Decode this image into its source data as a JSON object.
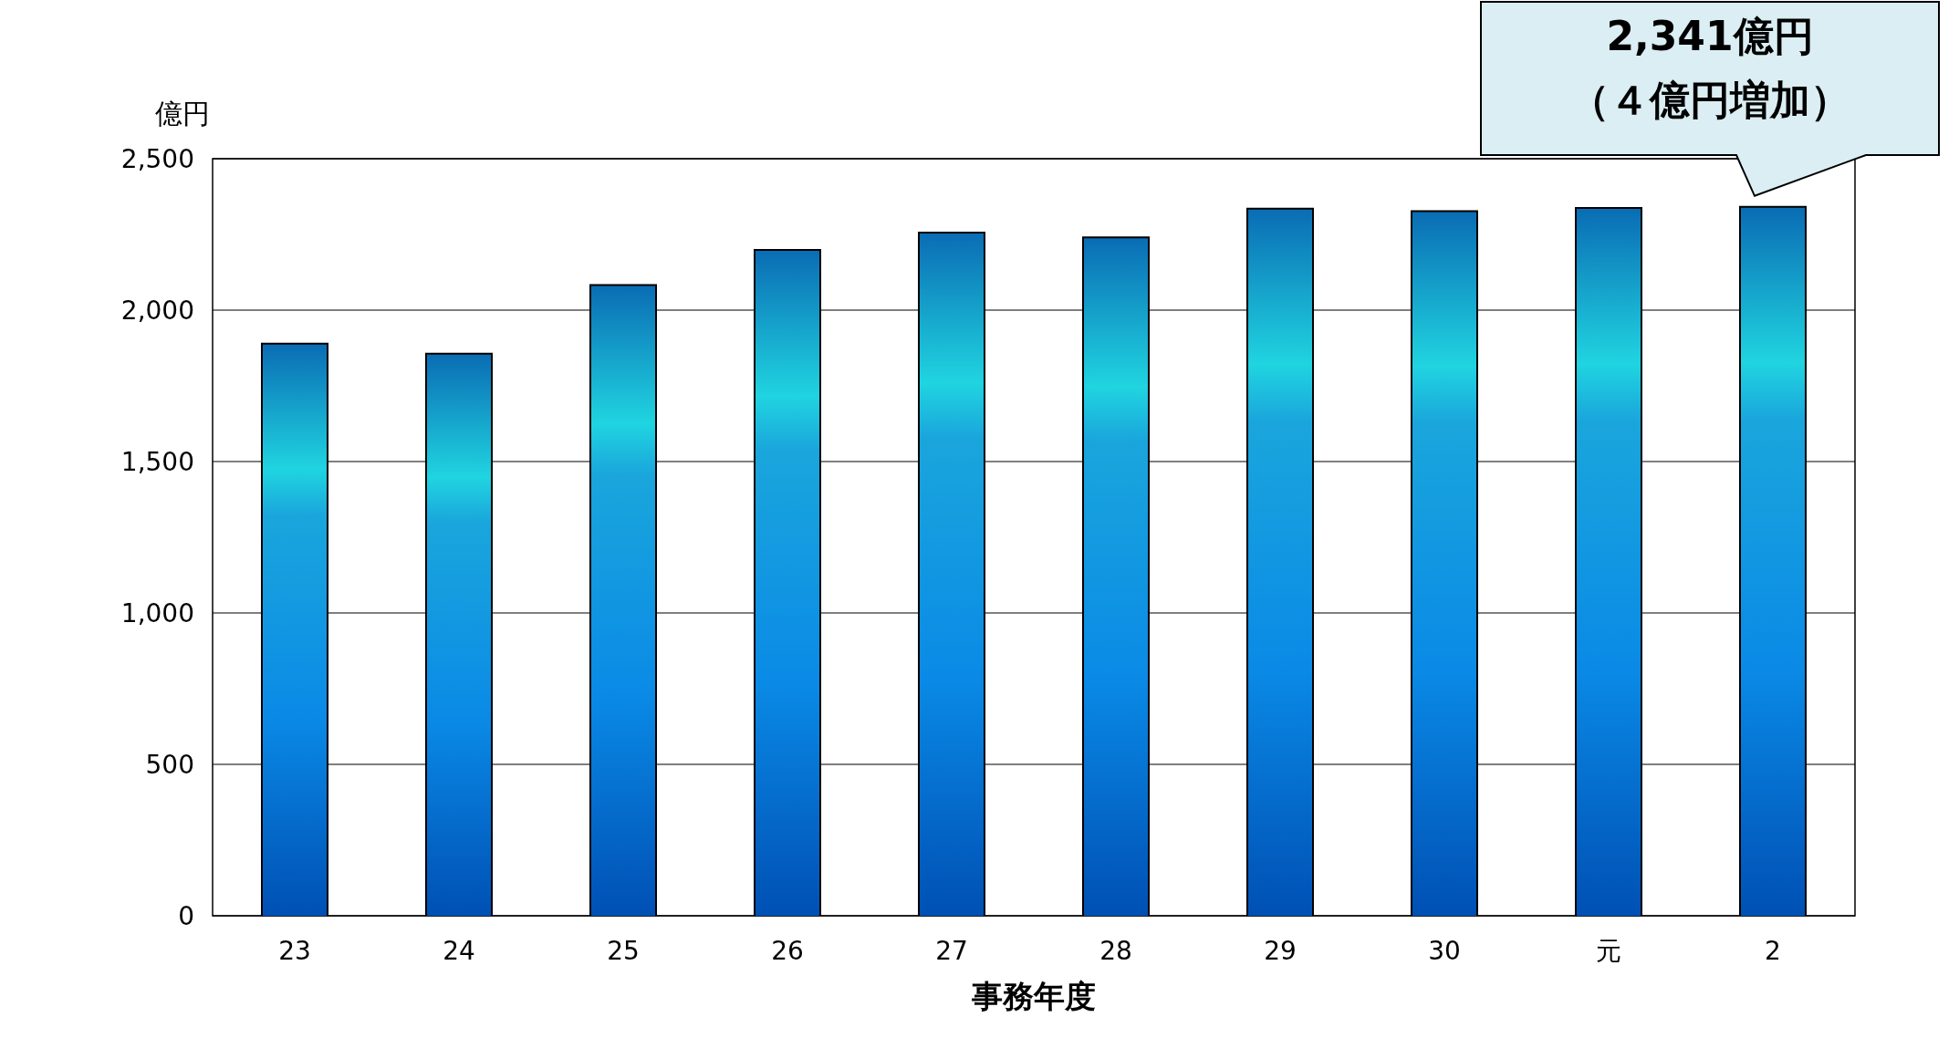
{
  "chart_data": {
    "type": "bar",
    "ylabel": "億円",
    "xlabel": "事務年度",
    "categories": [
      "23",
      "24",
      "25",
      "26",
      "27",
      "28",
      "29",
      "30",
      "元",
      "2"
    ],
    "values": [
      1889,
      1856,
      2083,
      2199,
      2256,
      2240,
      2335,
      2327,
      2337,
      2341
    ],
    "color": "#1aa6dc",
    "ylim": [
      0,
      2500
    ],
    "yticks": [
      {
        "value": 0,
        "label": "0"
      },
      {
        "value": 500,
        "label": "500"
      },
      {
        "value": 1000,
        "label": "1,000"
      },
      {
        "value": 1500,
        "label": "1,500"
      },
      {
        "value": 2000,
        "label": "2,000"
      },
      {
        "value": 2500,
        "label": "2,500"
      }
    ],
    "grid": "y",
    "annotations": [
      "2,341億円",
      "（４億円増加）"
    ]
  }
}
